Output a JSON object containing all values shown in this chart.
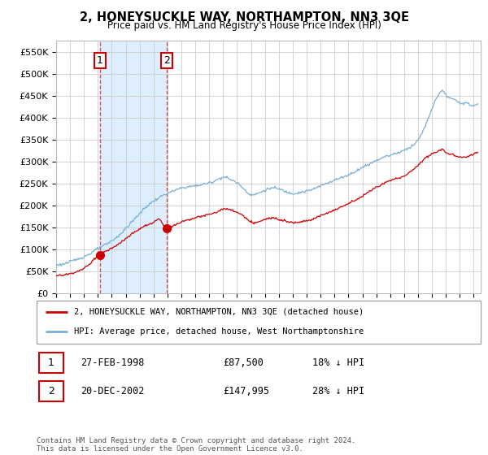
{
  "title": "2, HONEYSUCKLE WAY, NORTHAMPTON, NN3 3QE",
  "subtitle": "Price paid vs. HM Land Registry's House Price Index (HPI)",
  "ylim": [
    0,
    575000
  ],
  "yticks": [
    0,
    50000,
    100000,
    150000,
    200000,
    250000,
    300000,
    350000,
    400000,
    450000,
    500000,
    550000
  ],
  "ytick_labels": [
    "£0",
    "£50K",
    "£100K",
    "£150K",
    "£200K",
    "£250K",
    "£300K",
    "£350K",
    "£400K",
    "£450K",
    "£500K",
    "£550K"
  ],
  "hpi_color": "#7ab0d4",
  "price_color": "#cc0000",
  "vline_color": "#cc0000",
  "shade_color": "#ddeeff",
  "background_color": "#ffffff",
  "grid_color": "#cccccc",
  "purchase1_x": 1998.15,
  "purchase1_price": 87500,
  "purchase2_x": 2002.97,
  "purchase2_price": 147995,
  "legend_line1": "2, HONEYSUCKLE WAY, NORTHAMPTON, NN3 3QE (detached house)",
  "legend_line2": "HPI: Average price, detached house, West Northamptonshire",
  "table": [
    {
      "label": "1",
      "date": "27-FEB-1998",
      "price": "£87,500",
      "pct": "18% ↓ HPI"
    },
    {
      "label": "2",
      "date": "20-DEC-2002",
      "price": "£147,995",
      "pct": "28% ↓ HPI"
    }
  ],
  "footer": "Contains HM Land Registry data © Crown copyright and database right 2024.\nThis data is licensed under the Open Government Licence v3.0.",
  "xmin": 1995.0,
  "xmax": 2025.5
}
